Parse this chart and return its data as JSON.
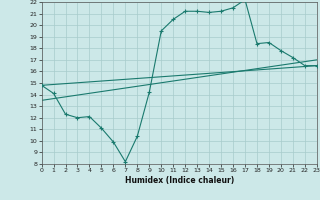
{
  "title": "",
  "xlabel": "Humidex (Indice chaleur)",
  "ylabel": "",
  "xlim": [
    0,
    23
  ],
  "ylim": [
    8,
    22
  ],
  "xticks": [
    0,
    1,
    2,
    3,
    4,
    5,
    6,
    7,
    8,
    9,
    10,
    11,
    12,
    13,
    14,
    15,
    16,
    17,
    18,
    19,
    20,
    21,
    22,
    23
  ],
  "yticks": [
    8,
    9,
    10,
    11,
    12,
    13,
    14,
    15,
    16,
    17,
    18,
    19,
    20,
    21,
    22
  ],
  "bg_color": "#cce8e8",
  "grid_color": "#a8cccc",
  "line_color": "#1a7a6e",
  "curve_x": [
    0,
    1,
    2,
    3,
    4,
    5,
    6,
    7,
    8,
    9,
    10,
    11,
    12,
    13,
    14,
    15,
    16,
    17,
    18,
    19,
    20,
    21,
    22,
    23
  ],
  "curve_y": [
    14.8,
    14.1,
    12.3,
    12.0,
    12.1,
    11.1,
    9.9,
    8.2,
    10.4,
    14.2,
    19.5,
    20.5,
    21.2,
    21.2,
    21.1,
    21.2,
    21.5,
    22.2,
    18.4,
    18.5,
    17.8,
    17.2,
    16.5,
    16.5
  ],
  "line1_x": [
    0,
    23
  ],
  "line1_y": [
    13.5,
    17.0
  ],
  "line2_x": [
    0,
    23
  ],
  "line2_y": [
    14.8,
    16.5
  ]
}
